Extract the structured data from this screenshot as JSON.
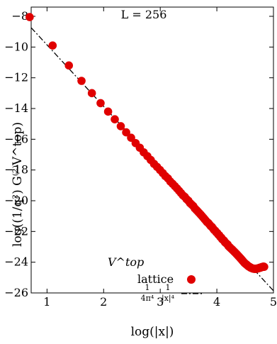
{
  "chart_data": {
    "type": "scatter",
    "title": "L = 256",
    "xlabel": "log(|x|)",
    "ylabel": "log((1/q²) G⁽²⁾V^top)",
    "xlim": [
      0.72,
      5.0
    ],
    "ylim": [
      -26,
      -7.4
    ],
    "xticks": [
      1,
      2,
      3,
      4,
      5
    ],
    "xtick_labels": [
      "1",
      "2",
      "3",
      "4",
      "5"
    ],
    "yticks": [
      -26,
      -24,
      -22,
      -20,
      -18,
      -16,
      -14,
      -12,
      -10,
      -8
    ],
    "ytick_labels": [
      "−26",
      "−24",
      "−22",
      "−20",
      "−18",
      "−16",
      "−14",
      "−12",
      "−10",
      "−8"
    ],
    "grid": false,
    "legend": {
      "title": "V^top",
      "placement": "lower-right"
    },
    "series": [
      {
        "name": "lattice",
        "kind": "points",
        "color": "#e00000",
        "points": [
          [
            0.693,
            -8.05
          ],
          [
            1.099,
            -9.9
          ],
          [
            1.386,
            -11.2
          ],
          [
            1.609,
            -12.2
          ],
          [
            1.792,
            -13.0
          ],
          [
            1.946,
            -13.65
          ],
          [
            2.079,
            -14.2
          ],
          [
            2.197,
            -14.7
          ],
          [
            2.303,
            -15.15
          ],
          [
            2.398,
            -15.55
          ],
          [
            2.485,
            -15.9
          ],
          [
            2.565,
            -16.25
          ],
          [
            2.639,
            -16.55
          ],
          [
            2.708,
            -16.85
          ],
          [
            2.773,
            -17.1
          ],
          [
            2.833,
            -17.35
          ],
          [
            2.89,
            -17.6
          ],
          [
            2.944,
            -17.8
          ],
          [
            2.996,
            -18.0
          ],
          [
            3.045,
            -18.2
          ],
          [
            3.091,
            -18.4
          ],
          [
            3.136,
            -18.55
          ],
          [
            3.178,
            -18.75
          ],
          [
            3.219,
            -18.9
          ],
          [
            3.258,
            -19.05
          ],
          [
            3.296,
            -19.2
          ],
          [
            3.332,
            -19.35
          ],
          [
            3.367,
            -19.5
          ],
          [
            3.401,
            -19.65
          ],
          [
            3.434,
            -19.75
          ],
          [
            3.466,
            -19.9
          ],
          [
            3.497,
            -20.0
          ],
          [
            3.526,
            -20.15
          ],
          [
            3.555,
            -20.25
          ],
          [
            3.584,
            -20.35
          ],
          [
            3.611,
            -20.5
          ],
          [
            3.638,
            -20.6
          ],
          [
            3.664,
            -20.7
          ],
          [
            3.689,
            -20.8
          ],
          [
            3.714,
            -20.9
          ],
          [
            3.738,
            -21.0
          ],
          [
            3.761,
            -21.1
          ],
          [
            3.784,
            -21.2
          ],
          [
            3.807,
            -21.3
          ],
          [
            3.829,
            -21.4
          ],
          [
            3.85,
            -21.45
          ],
          [
            3.871,
            -21.55
          ],
          [
            3.892,
            -21.65
          ],
          [
            3.912,
            -21.7
          ],
          [
            3.932,
            -21.8
          ],
          [
            3.951,
            -21.9
          ],
          [
            3.97,
            -21.95
          ],
          [
            3.989,
            -22.05
          ],
          [
            4.007,
            -22.1
          ],
          [
            4.025,
            -22.2
          ],
          [
            4.043,
            -22.25
          ],
          [
            4.06,
            -22.35
          ],
          [
            4.078,
            -22.4
          ],
          [
            4.094,
            -22.5
          ],
          [
            4.111,
            -22.55
          ],
          [
            4.127,
            -22.6
          ],
          [
            4.143,
            -22.7
          ],
          [
            4.159,
            -22.75
          ],
          [
            4.174,
            -22.8
          ],
          [
            4.19,
            -22.85
          ],
          [
            4.205,
            -22.95
          ],
          [
            4.22,
            -23.0
          ],
          [
            4.234,
            -23.05
          ],
          [
            4.248,
            -23.1
          ],
          [
            4.263,
            -23.15
          ],
          [
            4.277,
            -23.2
          ],
          [
            4.29,
            -23.25
          ],
          [
            4.304,
            -23.3
          ],
          [
            4.317,
            -23.35
          ],
          [
            4.331,
            -23.4
          ],
          [
            4.344,
            -23.45
          ],
          [
            4.357,
            -23.5
          ],
          [
            4.369,
            -23.55
          ],
          [
            4.382,
            -23.6
          ],
          [
            4.394,
            -23.65
          ],
          [
            4.407,
            -23.7
          ],
          [
            4.419,
            -23.75
          ],
          [
            4.431,
            -23.8
          ],
          [
            4.443,
            -23.85
          ],
          [
            4.454,
            -23.9
          ],
          [
            4.466,
            -23.95
          ],
          [
            4.477,
            -24.0
          ],
          [
            4.489,
            -24.05
          ],
          [
            4.5,
            -24.08
          ],
          [
            4.511,
            -24.12
          ],
          [
            4.522,
            -24.15
          ],
          [
            4.533,
            -24.18
          ],
          [
            4.543,
            -24.22
          ],
          [
            4.554,
            -24.25
          ],
          [
            4.564,
            -24.28
          ],
          [
            4.575,
            -24.3
          ],
          [
            4.585,
            -24.32
          ],
          [
            4.595,
            -24.35
          ],
          [
            4.605,
            -24.37
          ],
          [
            4.615,
            -24.38
          ],
          [
            4.625,
            -24.4
          ],
          [
            4.635,
            -24.41
          ],
          [
            4.644,
            -24.42
          ],
          [
            4.654,
            -24.42
          ],
          [
            4.663,
            -24.43
          ],
          [
            4.673,
            -24.43
          ],
          [
            4.682,
            -24.43
          ],
          [
            4.691,
            -24.43
          ],
          [
            4.7,
            -24.42
          ],
          [
            4.71,
            -24.42
          ],
          [
            4.718,
            -24.41
          ],
          [
            4.727,
            -24.4
          ],
          [
            4.736,
            -24.39
          ],
          [
            4.745,
            -24.38
          ],
          [
            4.754,
            -24.37
          ],
          [
            4.762,
            -24.36
          ],
          [
            4.771,
            -24.35
          ],
          [
            4.779,
            -24.34
          ],
          [
            4.787,
            -24.33
          ],
          [
            4.796,
            -24.32
          ],
          [
            4.804,
            -24.31
          ],
          [
            4.812,
            -24.3
          ],
          [
            4.82,
            -24.29
          ],
          [
            4.828,
            -24.29
          ],
          [
            4.836,
            -24.3
          ]
        ]
      },
      {
        "name": "1/(4π⁴) 1/|x|⁴",
        "kind": "line",
        "style": "dashdot",
        "color": "#000000",
        "x": [
          0.72,
          5.0
        ],
        "y": [
          -8.74,
          -25.86
        ]
      }
    ]
  },
  "legend_labels": {
    "lattice": "lattice",
    "fit_numer_1": "1",
    "fit_denom_1": "4π⁴",
    "fit_numer_2": "1",
    "fit_denom_2": "|x|⁴"
  }
}
